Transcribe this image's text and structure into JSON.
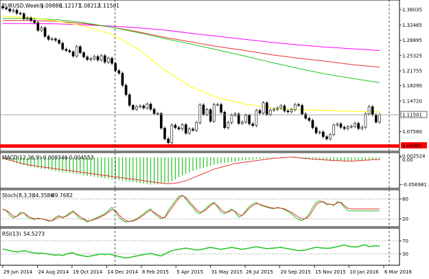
{
  "chart_data": [
    {
      "type": "candlestick",
      "panel": "price",
      "header": {
        "symbol": "EURUSD,Weekly",
        "values": [
          "1.09886",
          "1.12171",
          "1.08212",
          "1.11501"
        ]
      },
      "y_ticks": [
        "1.36035",
        "1.32465",
        "1.28895",
        "1.25325",
        "1.21755",
        "1.18290",
        "1.14720",
        "1.11501",
        "1.07580",
        "1.04305"
      ],
      "ylim": [
        1.035,
        1.378
      ],
      "current_price": "1.11501",
      "current_price_value": 1.11501,
      "low_marker": "1.04305",
      "low_marker_value": 1.04305,
      "x_ticks": [
        "29 Jun 2014",
        "24 Aug 2014",
        "19 Oct 2014",
        "14 Dec 2014",
        "8 Feb 2015",
        "5 Apr 2015",
        "31 May 2015",
        "26 Jul 2015",
        "20 Sep 2015",
        "15 Nov 2015",
        "10 Jan 2016",
        "6 Mar 2016"
      ],
      "closes": [
        1.364,
        1.362,
        1.357,
        1.359,
        1.352,
        1.351,
        1.339,
        1.341,
        1.335,
        1.33,
        1.312,
        1.318,
        1.298,
        1.291,
        1.292,
        1.289,
        1.282,
        1.268,
        1.265,
        1.262,
        1.252,
        1.274,
        1.26,
        1.25,
        1.244,
        1.246,
        1.251,
        1.243,
        1.253,
        1.238,
        1.247,
        1.235,
        1.218,
        1.212,
        1.184,
        1.162,
        1.137,
        1.128,
        1.134,
        1.136,
        1.131,
        1.14,
        1.128,
        1.118,
        1.118,
        1.084,
        1.059,
        1.05,
        1.091,
        1.085,
        1.082,
        1.092,
        1.072,
        1.082,
        1.079,
        1.097,
        1.138,
        1.116,
        1.127,
        1.1,
        1.139,
        1.139,
        1.121,
        1.085,
        1.097,
        1.114,
        1.117,
        1.095,
        1.098,
        1.114,
        1.094,
        1.09,
        1.125,
        1.119,
        1.143,
        1.116,
        1.126,
        1.128,
        1.131,
        1.136,
        1.124,
        1.122,
        1.127,
        1.139,
        1.137,
        1.117,
        1.107,
        1.102,
        1.085,
        1.073,
        1.075,
        1.064,
        1.059,
        1.069,
        1.091,
        1.094,
        1.086,
        1.083,
        1.087,
        1.088,
        1.095,
        1.083,
        1.086,
        1.117,
        1.134,
        1.115,
        1.098,
        1.115
      ],
      "moving_averages": [
        {
          "color": "#ff00ff",
          "values": [
            1.328,
            1.328,
            1.327,
            1.325,
            1.322,
            1.318,
            1.313,
            1.305,
            1.298,
            1.291,
            1.284,
            1.278,
            1.273,
            1.269,
            1.265
          ]
        },
        {
          "color": "#e8302e",
          "values": [
            1.335,
            1.335,
            1.333,
            1.328,
            1.32,
            1.309,
            1.296,
            1.285,
            1.274,
            1.265,
            1.255,
            1.247,
            1.24,
            1.232,
            1.226
          ]
        },
        {
          "color": "#22c322",
          "values": [
            1.34,
            1.34,
            1.337,
            1.33,
            1.32,
            1.307,
            1.293,
            1.28,
            1.266,
            1.252,
            1.237,
            1.223,
            1.21,
            1.2,
            1.19
          ]
        },
        {
          "color": "#ffff00",
          "values": [
            1.345,
            1.342,
            1.334,
            1.322,
            1.304,
            1.27,
            1.22,
            1.18,
            1.155,
            1.14,
            1.131,
            1.127,
            1.125,
            1.123,
            1.122
          ]
        }
      ]
    },
    {
      "type": "histogram",
      "panel": "macd",
      "header": {
        "name": "MACD(12,26,9)",
        "values": [
          "-0.009346",
          "-0.004553"
        ]
      },
      "y_ticks": [
        "0.002524",
        "0.00",
        "-0.056981"
      ],
      "ylim": [
        -0.062,
        0.004
      ],
      "histogram": [
        -0.004,
        -0.006,
        -0.008,
        -0.01,
        -0.013,
        -0.015,
        -0.017,
        -0.019,
        -0.02,
        -0.021,
        -0.023,
        -0.024,
        -0.025,
        -0.026,
        -0.028,
        -0.029,
        -0.03,
        -0.031,
        -0.032,
        -0.033,
        -0.034,
        -0.035,
        -0.036,
        -0.038,
        -0.039,
        -0.04,
        -0.041,
        -0.042,
        -0.043,
        -0.044,
        -0.045,
        -0.046,
        -0.047,
        -0.048,
        -0.049,
        -0.05,
        -0.051,
        -0.052,
        -0.053,
        -0.054,
        -0.055,
        -0.056,
        -0.057,
        -0.057,
        -0.056,
        -0.055,
        -0.054,
        -0.053,
        -0.05,
        -0.046,
        -0.042,
        -0.038,
        -0.035,
        -0.032,
        -0.029,
        -0.026,
        -0.024,
        -0.022,
        -0.02,
        -0.018,
        -0.016,
        -0.014,
        -0.013,
        -0.012,
        -0.011,
        -0.01,
        -0.009,
        -0.008,
        -0.007,
        -0.006,
        -0.006,
        -0.005,
        -0.004,
        -0.003,
        -0.002,
        -0.002,
        -0.001,
        -0.001,
        0.0,
        0.001,
        0.001,
        0.0,
        -0.001,
        -0.002,
        -0.002,
        -0.003,
        -0.004,
        -0.004,
        -0.005,
        -0.006,
        -0.006,
        -0.007,
        -0.007,
        -0.008,
        -0.008,
        -0.008,
        -0.008,
        -0.008,
        -0.008,
        -0.008,
        -0.007,
        -0.007,
        -0.006,
        -0.006,
        -0.005,
        -0.005,
        -0.005,
        -0.005
      ],
      "signal": [
        -0.002,
        -0.004,
        -0.006,
        -0.008,
        -0.01,
        -0.012,
        -0.014,
        -0.015,
        -0.017,
        -0.018,
        -0.019,
        -0.02,
        -0.021,
        -0.022,
        -0.023,
        -0.024,
        -0.025,
        -0.026,
        -0.027,
        -0.028,
        -0.029,
        -0.03,
        -0.031,
        -0.032,
        -0.033,
        -0.034,
        -0.035,
        -0.036,
        -0.037,
        -0.038,
        -0.039,
        -0.04,
        -0.041,
        -0.042,
        -0.043,
        -0.044,
        -0.045,
        -0.046,
        -0.047,
        -0.048,
        -0.049,
        -0.05,
        -0.051,
        -0.052,
        -0.053,
        -0.054,
        -0.055,
        -0.055,
        -0.055,
        -0.054,
        -0.053,
        -0.051,
        -0.049,
        -0.046,
        -0.043,
        -0.04,
        -0.037,
        -0.034,
        -0.031,
        -0.028,
        -0.025,
        -0.023,
        -0.021,
        -0.019,
        -0.017,
        -0.015,
        -0.013,
        -0.012,
        -0.011,
        -0.01,
        -0.009,
        -0.008,
        -0.007,
        -0.006,
        -0.005,
        -0.004,
        -0.003,
        -0.002,
        -0.002,
        -0.001,
        -0.001,
        0.0,
        0.0,
        0.0,
        -0.001,
        -0.002,
        -0.002,
        -0.003,
        -0.004,
        -0.004,
        -0.005,
        -0.005,
        -0.006,
        -0.006,
        -0.007,
        -0.007,
        -0.007,
        -0.008,
        -0.008,
        -0.008,
        -0.008,
        -0.007,
        -0.007,
        -0.006,
        -0.006,
        -0.005,
        -0.005,
        -0.005
      ]
    },
    {
      "type": "line",
      "panel": "stochastic",
      "header": {
        "name": "Stoch(8,3,3)",
        "values": [
          "44.3586",
          "49.7682"
        ]
      },
      "y_ticks": [
        "80",
        "20"
      ],
      "ylim": [
        0,
        100
      ],
      "main": [
        50,
        45,
        30,
        22,
        28,
        40,
        38,
        25,
        20,
        18,
        22,
        20,
        17,
        12,
        15,
        25,
        30,
        22,
        30,
        38,
        45,
        30,
        20,
        18,
        10,
        15,
        20,
        25,
        30,
        35,
        45,
        55,
        40,
        25,
        15,
        10,
        12,
        15,
        20,
        28,
        35,
        45,
        50,
        35,
        28,
        20,
        25,
        45,
        60,
        75,
        88,
        92,
        80,
        65,
        55,
        40,
        35,
        45,
        55,
        65,
        70,
        55,
        40,
        35,
        42,
        50,
        40,
        25,
        30,
        45,
        58,
        65,
        70,
        62,
        58,
        55,
        52,
        50,
        55,
        52,
        48,
        42,
        35,
        25,
        18,
        15,
        22,
        35,
        55,
        70,
        75,
        70,
        62,
        65,
        60,
        72,
        68,
        55,
        45,
        44,
        44,
        44,
        44,
        44,
        44,
        44,
        44,
        44
      ],
      "signal": [
        48,
        46,
        38,
        28,
        27,
        35,
        38,
        30,
        24,
        20,
        20,
        20,
        18,
        15,
        14,
        20,
        26,
        25,
        27,
        34,
        40,
        35,
        26,
        20,
        14,
        14,
        18,
        22,
        27,
        32,
        40,
        48,
        45,
        32,
        22,
        14,
        12,
        13,
        17,
        24,
        31,
        40,
        46,
        40,
        32,
        25,
        23,
        38,
        52,
        68,
        82,
        90,
        85,
        72,
        60,
        48,
        40,
        42,
        50,
        60,
        67,
        60,
        48,
        40,
        40,
        46,
        43,
        32,
        30,
        40,
        52,
        60,
        66,
        64,
        60,
        57,
        54,
        52,
        53,
        52,
        50,
        45,
        40,
        32,
        25,
        20,
        20,
        28,
        45,
        62,
        70,
        72,
        66,
        64,
        62,
        68,
        70,
        60,
        52,
        50,
        50,
        50,
        50,
        50,
        50,
        50,
        50,
        50
      ]
    },
    {
      "type": "line",
      "panel": "rsi",
      "header": {
        "name": "RSI(13)",
        "values": [
          "54.5273"
        ]
      },
      "y_ticks": [
        "70",
        "30"
      ],
      "ylim": [
        0,
        100
      ],
      "values": [
        45,
        43,
        40,
        38,
        36,
        38,
        40,
        37,
        35,
        33,
        32,
        33,
        31,
        30,
        28,
        26,
        28,
        25,
        30,
        32,
        34,
        28,
        26,
        24,
        22,
        24,
        26,
        28,
        30,
        28,
        30,
        28,
        25,
        22,
        20,
        18,
        19,
        22,
        24,
        26,
        28,
        30,
        32,
        29,
        26,
        24,
        30,
        35,
        40,
        42,
        44,
        46,
        48,
        46,
        44,
        42,
        43,
        45,
        48,
        50,
        48,
        46,
        44,
        46,
        48,
        50,
        48,
        46,
        44,
        46,
        48,
        50,
        52,
        50,
        48,
        46,
        47,
        48,
        49,
        50,
        48,
        46,
        44,
        42,
        40,
        41,
        42,
        45,
        48,
        50,
        49,
        48,
        47,
        48,
        50,
        52,
        55,
        57,
        54,
        52,
        51,
        52,
        56,
        58,
        52,
        54,
        55,
        54
      ]
    }
  ]
}
